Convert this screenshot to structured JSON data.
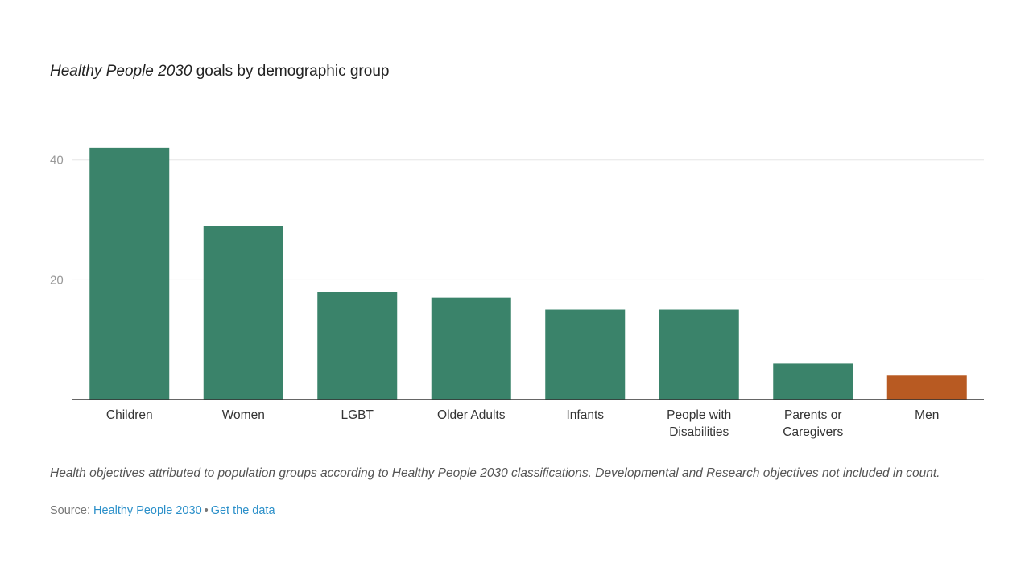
{
  "title": {
    "italic_part": "Healthy People 2030",
    "rest": " goals by demographic group"
  },
  "note": "Health objectives attributed to population groups according to Healthy People 2030 classifications. Developmental and Research objectives not included in count.",
  "source": {
    "label": "Source: ",
    "link1": "Healthy People 2030",
    "separator": "•",
    "link2": "Get the data"
  },
  "colors": {
    "bar": "#3a836a",
    "highlight": "#b85a22",
    "grid": "#e6e6e6",
    "axis": "#333333"
  },
  "chart_data": {
    "type": "bar",
    "categories": [
      [
        "Children"
      ],
      [
        "Women"
      ],
      [
        "LGBT"
      ],
      [
        "Older Adults"
      ],
      [
        "Infants"
      ],
      [
        "People with",
        "Disabilities"
      ],
      [
        "Parents or",
        "Caregivers"
      ],
      [
        "Men"
      ]
    ],
    "values": [
      42,
      29,
      18,
      17,
      15,
      15,
      6,
      4
    ],
    "highlight_index": 7,
    "yticks": [
      20,
      40
    ],
    "ylim": [
      0,
      44
    ],
    "grid": true,
    "legend": "none"
  }
}
